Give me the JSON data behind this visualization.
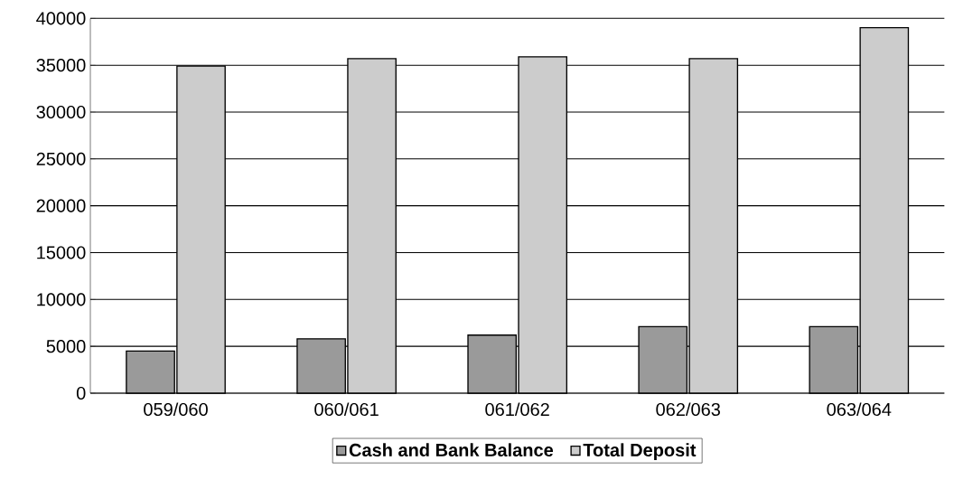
{
  "chart_data": {
    "type": "bar",
    "categories": [
      "059/060",
      "060/061",
      "061/062",
      "062/063",
      "063/064"
    ],
    "series": [
      {
        "name": "Cash and Bank Balance",
        "color": "#9a9a9a",
        "values": [
          4500,
          5800,
          6200,
          7100,
          7100
        ]
      },
      {
        "name": "Total Deposit",
        "color": "#cccccc",
        "values": [
          34900,
          35700,
          35900,
          35700,
          39000
        ]
      }
    ],
    "ylim": [
      0,
      40000
    ],
    "yticks": [
      0,
      5000,
      10000,
      15000,
      20000,
      25000,
      30000,
      35000,
      40000
    ],
    "grid": "y",
    "legend": "bottom"
  }
}
